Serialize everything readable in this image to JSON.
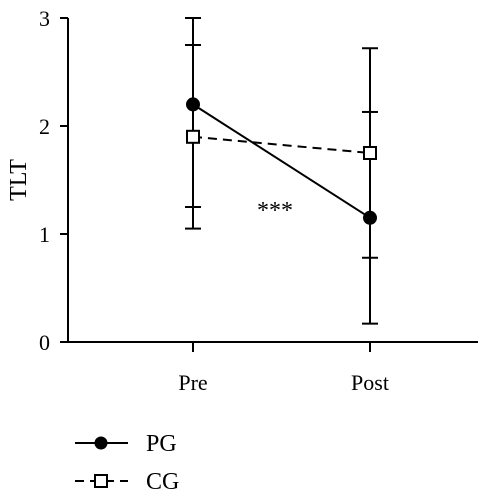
{
  "chart_data": {
    "type": "line",
    "categories": [
      "Pre",
      "Post"
    ],
    "ylabel": "TLT",
    "ylim": [
      0,
      3
    ],
    "yticks": [
      "0",
      "1",
      "2",
      "3"
    ],
    "grid": false,
    "legend_position": "bottom-left",
    "annotation": "***",
    "series": [
      {
        "name": "PG",
        "values": [
          2.2,
          1.15
        ],
        "error_low": [
          1.05,
          0.17
        ],
        "error_high": [
          3.0,
          2.72
        ],
        "error_mid_low": [
          1.25,
          0.78
        ],
        "error_mid_high": [
          2.75,
          2.13
        ],
        "line_style": "solid",
        "marker": "filled-circle",
        "color": "#000000"
      },
      {
        "name": "CG",
        "values": [
          1.9,
          1.75
        ],
        "line_style": "dashed",
        "marker": "open-square",
        "color": "#000000"
      }
    ]
  }
}
